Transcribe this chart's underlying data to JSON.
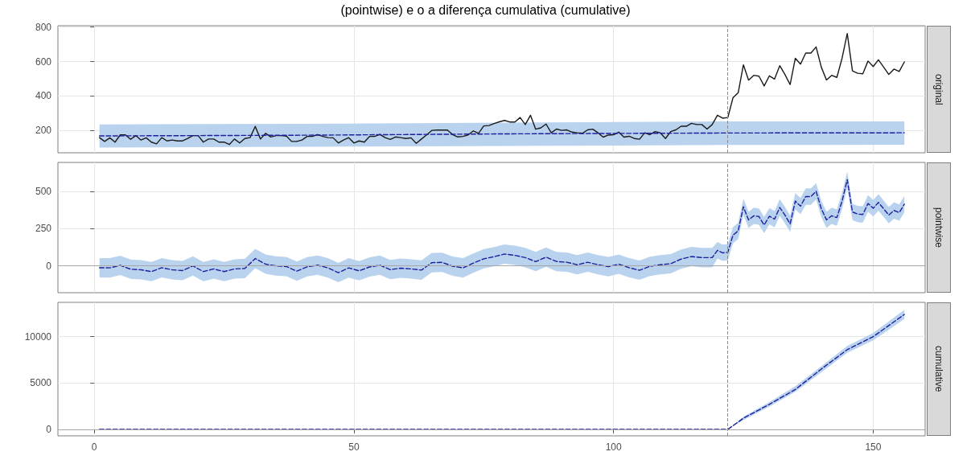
{
  "chart_data": [
    {
      "type": "line",
      "y2label": "original",
      "annotations": [
        "(pointwise) e o a diferença cumulativa (cumulative)"
      ],
      "xlim": [
        -7,
        160
      ],
      "xticks": [
        0,
        50,
        100,
        150
      ],
      "ylim": [
        70,
        808
      ],
      "yticks": [
        200,
        400,
        600,
        800
      ],
      "grid": true,
      "tick_labels": "y",
      "ref_lines": [
        {
          "axis": "x",
          "value": 122,
          "color": "#8c8c8c",
          "line_style": "dashed"
        }
      ],
      "series": [
        {
          "color": "#1a1a1a",
          "line_style": "solid",
          "x": [
            1,
            2,
            3,
            4,
            5,
            6,
            7,
            8,
            9,
            10,
            11,
            12,
            13,
            14,
            15,
            16,
            17,
            18,
            19,
            20,
            21,
            22,
            23,
            24,
            25,
            26,
            27,
            28,
            29,
            30,
            31,
            32,
            33,
            34,
            35,
            36,
            37,
            38,
            39,
            40,
            41,
            42,
            43,
            44,
            45,
            46,
            47,
            48,
            49,
            50,
            51,
            52,
            53,
            54,
            55,
            56,
            57,
            58,
            59,
            60,
            61,
            62,
            63,
            64,
            65,
            66,
            67,
            68,
            69,
            70,
            71,
            72,
            73,
            74,
            75,
            76,
            77,
            78,
            79,
            80,
            81,
            82,
            83,
            84,
            85,
            86,
            87,
            88,
            89,
            90,
            91,
            92,
            93,
            94,
            95,
            96,
            97,
            98,
            99,
            100,
            101,
            102,
            103,
            104,
            105,
            106,
            107,
            108,
            109,
            110,
            111,
            112,
            113,
            114,
            115,
            116,
            117,
            118,
            119,
            120,
            121,
            122,
            123,
            124,
            125,
            126,
            127,
            128,
            129,
            130,
            131,
            132,
            133,
            134,
            135,
            136,
            137,
            138,
            139,
            140,
            141,
            142,
            143,
            144,
            145,
            146,
            147,
            148,
            149,
            150,
            151,
            152,
            153,
            154,
            155,
            156
          ],
          "values": [
            158,
            136,
            157,
            132,
            174,
            174,
            148,
            170,
            144,
            157,
            132,
            122,
            158,
            139,
            144,
            139,
            139,
            153,
            170,
            170,
            132,
            150,
            150,
            132,
            132,
            118,
            150,
            127,
            153,
            158,
            223,
            150,
            183,
            162,
            170,
            170,
            167,
            136,
            136,
            144,
            165,
            165,
            176,
            165,
            158,
            157,
            127,
            144,
            158,
            127,
            139,
            132,
            165,
            165,
            177,
            158,
            148,
            162,
            158,
            153,
            157,
            125,
            150,
            174,
            200,
            202,
            202,
            202,
            176,
            162,
            165,
            174,
            197,
            183,
            226,
            228,
            240,
            250,
            258,
            249,
            249,
            275,
            234,
            288,
            207,
            215,
            237,
            186,
            208,
            200,
            203,
            190,
            186,
            183,
            203,
            207,
            186,
            161,
            173,
            175,
            190,
            161,
            166,
            153,
            149,
            186,
            175,
            193,
            186,
            153,
            193,
            203,
            224,
            224,
            241,
            234,
            234,
            208,
            234,
            288,
            271,
            275,
            390,
            419,
            581,
            492,
            520,
            515,
            458,
            517,
            498,
            576,
            525,
            466,
            619,
            585,
            649,
            649,
            685,
            568,
            493,
            520,
            508,
            619,
            763,
            546,
            532,
            529,
            603,
            571,
            610,
            568,
            525,
            556,
            542,
            598
          ]
        },
        {
          "color": "#1f1f9e",
          "line_style": "dashed",
          "x": [
            1,
            40,
            80,
            122,
            156
          ],
          "values": [
            168,
            172,
            180,
            185,
            186
          ],
          "lower": [
            100,
            105,
            110,
            115,
            117
          ],
          "upper": [
            235,
            238,
            245,
            252,
            252
          ]
        }
      ]
    },
    {
      "type": "line",
      "y2label": "pointwise",
      "xlim": [
        -7,
        160
      ],
      "xticks": [
        0,
        50,
        100,
        150
      ],
      "ylim": [
        -180,
        696
      ],
      "yticks": [
        0,
        250,
        500
      ],
      "grid": true,
      "tick_labels": "y",
      "ref_lines": [
        {
          "axis": "x",
          "value": 122,
          "color": "#8c8c8c",
          "line_style": "dashed"
        },
        {
          "axis": "y",
          "value": 0,
          "color": "#a6a6a6",
          "line_style": "solid"
        }
      ],
      "series": [
        {
          "color": "#1f1f9e",
          "line_style": "dashed",
          "x": [
            1,
            3,
            5,
            7,
            9,
            11,
            13,
            15,
            17,
            19,
            21,
            23,
            25,
            27,
            29,
            31,
            33,
            35,
            37,
            39,
            41,
            43,
            45,
            47,
            49,
            51,
            53,
            55,
            57,
            59,
            61,
            63,
            65,
            67,
            69,
            71,
            73,
            75,
            77,
            79,
            81,
            83,
            85,
            87,
            89,
            91,
            93,
            95,
            97,
            99,
            101,
            103,
            105,
            107,
            109,
            111,
            113,
            115,
            117,
            119,
            120,
            121,
            122,
            123,
            124,
            125,
            126,
            127,
            128,
            129,
            130,
            131,
            132,
            133,
            134,
            135,
            136,
            137,
            138,
            139,
            140,
            141,
            142,
            143,
            144,
            145,
            146,
            147,
            148,
            149,
            150,
            151,
            152,
            153,
            154,
            155,
            156
          ],
          "values": [
            -12,
            -13,
            4,
            -22,
            -26,
            -38,
            -12,
            -26,
            -31,
            0,
            -38,
            -20,
            -38,
            -20,
            -17,
            50,
            12,
            0,
            -4,
            -35,
            -6,
            5,
            -13,
            -45,
            -13,
            -33,
            -7,
            5,
            -25,
            -15,
            -20,
            -28,
            22,
            24,
            -2,
            -13,
            19,
            48,
            62,
            80,
            71,
            56,
            29,
            59,
            30,
            25,
            8,
            25,
            8,
            -5,
            12,
            -12,
            -29,
            -3,
            8,
            15,
            46,
            63,
            56,
            56,
            105,
            88,
            92,
            207,
            236,
            398,
            309,
            337,
            332,
            275,
            334,
            315,
            393,
            342,
            283,
            436,
            402,
            466,
            466,
            502,
            385,
            310,
            337,
            325,
            436,
            580,
            363,
            349,
            346,
            420,
            388,
            427,
            385,
            342,
            373,
            359,
            415
          ],
          "lower": [
            -77,
            -78,
            -61,
            -87,
            -91,
            -103,
            -77,
            -91,
            -96,
            -65,
            -103,
            -85,
            -103,
            -85,
            -82,
            -15,
            -53,
            -65,
            -69,
            -100,
            -71,
            -60,
            -78,
            -110,
            -78,
            -98,
            -72,
            -60,
            -90,
            -80,
            -85,
            -93,
            -43,
            -41,
            -67,
            -78,
            -46,
            -17,
            -3,
            15,
            6,
            -9,
            -36,
            -6,
            -35,
            -40,
            -57,
            -40,
            -57,
            -70,
            -53,
            -77,
            -94,
            -68,
            -57,
            -50,
            -19,
            -2,
            -9,
            -9,
            50,
            33,
            37,
            152,
            181,
            343,
            254,
            282,
            277,
            220,
            279,
            260,
            338,
            287,
            228,
            381,
            347,
            411,
            411,
            447,
            330,
            255,
            282,
            270,
            381,
            525,
            308,
            294,
            291,
            365,
            333,
            372,
            330,
            287,
            318,
            304,
            360
          ],
          "upper": [
            53,
            52,
            69,
            43,
            39,
            27,
            53,
            39,
            34,
            65,
            27,
            45,
            27,
            45,
            48,
            115,
            77,
            65,
            61,
            30,
            59,
            70,
            52,
            20,
            52,
            32,
            58,
            70,
            40,
            50,
            45,
            37,
            87,
            89,
            63,
            52,
            84,
            113,
            127,
            145,
            136,
            121,
            94,
            124,
            95,
            90,
            73,
            90,
            73,
            60,
            77,
            53,
            36,
            62,
            73,
            80,
            111,
            128,
            121,
            121,
            160,
            143,
            147,
            262,
            291,
            453,
            364,
            392,
            387,
            330,
            389,
            370,
            448,
            397,
            338,
            491,
            457,
            521,
            521,
            557,
            440,
            365,
            392,
            380,
            491,
            635,
            418,
            404,
            401,
            475,
            443,
            482,
            440,
            397,
            428,
            414,
            470
          ]
        }
      ]
    },
    {
      "type": "line",
      "y2label": "cumulative",
      "xlim": [
        -7,
        160
      ],
      "xticks": [
        0,
        50,
        100,
        150
      ],
      "ylim": [
        -700,
        13700
      ],
      "yticks": [
        0,
        5000,
        10000
      ],
      "grid": true,
      "ref_lines": [
        {
          "axis": "x",
          "value": 122,
          "color": "#8c8c8c",
          "line_style": "dashed"
        },
        {
          "axis": "y",
          "value": 0,
          "color": "#a6a6a6",
          "line_style": "solid"
        }
      ],
      "series": [
        {
          "color": "#1f1f9e",
          "line_style": "dashed",
          "x": [
            1,
            122,
            125,
            130,
            135,
            140,
            145,
            150,
            156
          ],
          "values": [
            0,
            0,
            1200,
            2700,
            4300,
            6500,
            8600,
            10000,
            12400
          ],
          "lower": [
            0,
            0,
            1000,
            2450,
            4050,
            6150,
            8250,
            9600,
            11900
          ],
          "upper": [
            0,
            0,
            1350,
            2950,
            4650,
            6800,
            9000,
            10400,
            12900
          ]
        }
      ]
    }
  ]
}
